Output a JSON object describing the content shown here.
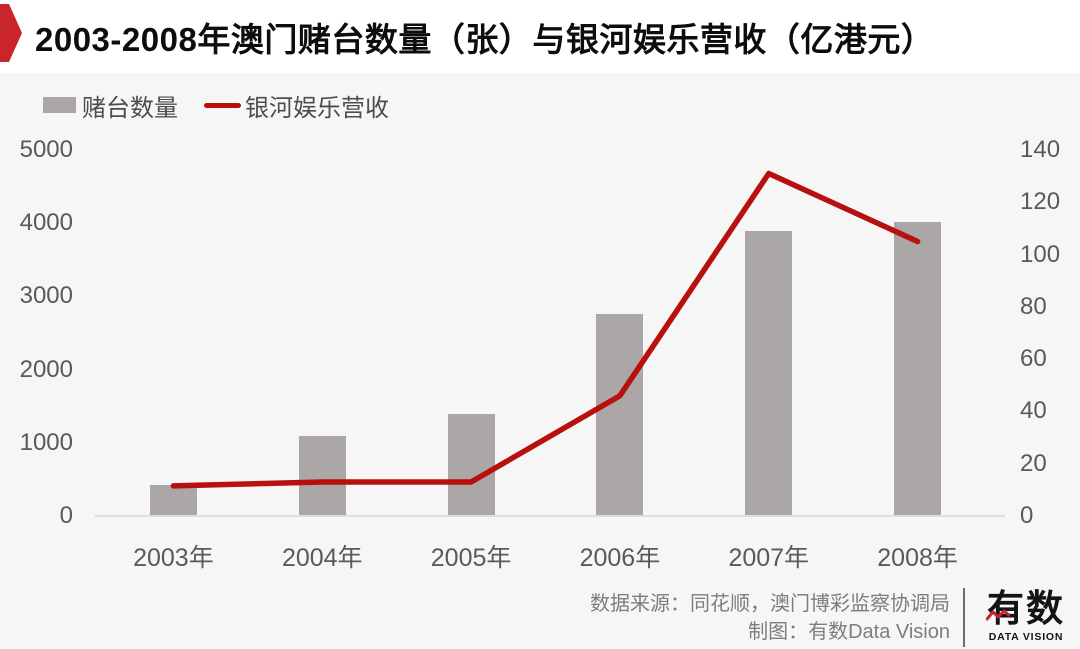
{
  "title": "2003-2008年澳门赌台数量（张）与银河娱乐营收（亿港元）",
  "legend": {
    "bar_label": "赌台数量",
    "line_label": "银河娱乐营收"
  },
  "chart_data": {
    "type": "bar",
    "subtype": "dual-axis bar + line combo",
    "title": "2003-2008年澳门赌台数量（张）与银河娱乐营收（亿港元）",
    "categories": [
      "2003年",
      "2004年",
      "2005年",
      "2006年",
      "2007年",
      "2008年"
    ],
    "series": [
      {
        "name": "赌台数量",
        "type": "bar",
        "axis": "left",
        "unit": "张",
        "values": [
          424,
          1092,
          1388,
          2762,
          3900,
          4017
        ]
      },
      {
        "name": "银河娱乐营收",
        "type": "line",
        "axis": "right",
        "unit": "亿港元",
        "values": [
          11.5,
          13,
          13,
          46,
          131,
          105
        ]
      }
    ],
    "left_axis": {
      "min": 0,
      "max": 5000,
      "ticks": [
        0,
        1000,
        2000,
        3000,
        4000,
        5000
      ]
    },
    "right_axis": {
      "min": 0,
      "max": 140,
      "ticks": [
        0,
        20,
        40,
        60,
        80,
        100,
        120,
        140
      ]
    },
    "grid": false,
    "legend_position": "top-left"
  },
  "colors": {
    "bar": "#aaa7a6",
    "line": "#b7100e",
    "badge": "#c9252b",
    "title_band": "#ffffff",
    "background": "#f6f6f6",
    "axis_text": "#595959",
    "footer_text": "#7d7d7d"
  },
  "footer": {
    "source_line": "数据来源：同花顺，澳门博彩监察协调局",
    "credit_line": "制图：有数Data Vision",
    "logo_text": "有数",
    "logo_subtext": "DATA VISION"
  }
}
